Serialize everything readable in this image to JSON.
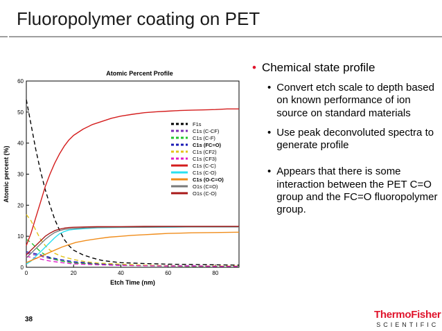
{
  "slide": {
    "title": "Fluoropolymer coating on PET",
    "page_number": "38"
  },
  "logo": {
    "line1": "ThermoFisher",
    "line2": "SCIENTIFIC"
  },
  "bullets": {
    "main": "Chemical state profile",
    "sub1": "Convert etch scale to depth based on known performance of ion source on standard materials",
    "sub2": "Use peak deconvoluted spectra to generate profile",
    "sub3": "Appears that there is some interaction between the PET C=O group and the FC=O fluoropolymer group."
  },
  "chart_data": {
    "type": "line",
    "title": "Atomic Percent Profile",
    "xlabel": "Etch Time (nm)",
    "ylabel": "Atomic percent (%)",
    "xlim": [
      0,
      90
    ],
    "ylim": [
      0,
      60
    ],
    "xticks": [
      0,
      20,
      40,
      60,
      80
    ],
    "yticks": [
      0,
      10,
      20,
      30,
      40,
      50,
      60
    ],
    "legend_position": "center-right",
    "series": [
      {
        "name": "F1s",
        "color": "#000000",
        "style": "dashed",
        "bold": false,
        "x": [
          0,
          2,
          4,
          6,
          8,
          10,
          12,
          14,
          16,
          18,
          20,
          24,
          28,
          32,
          36,
          40,
          50,
          60,
          70,
          80,
          90
        ],
        "y": [
          54,
          46,
          38,
          31,
          25,
          20,
          15.5,
          12,
          9,
          7,
          5.5,
          4,
          3,
          2.2,
          1.8,
          1.5,
          1.2,
          1,
          0.9,
          0.8,
          0.7
        ]
      },
      {
        "name": "C1s (C-CF)",
        "color": "#7b2fb5",
        "style": "dashed",
        "bold": false,
        "x": [
          0,
          5,
          10,
          15,
          20,
          30,
          40,
          50,
          60,
          70,
          80,
          90
        ],
        "y": [
          4.5,
          3.8,
          2.8,
          2,
          1.5,
          1,
          0.8,
          0.6,
          0.5,
          0.5,
          0.4,
          0.4
        ]
      },
      {
        "name": "C1s (C-F)",
        "color": "#22c22e",
        "style": "dashed",
        "bold": false,
        "x": [
          0,
          2,
          4,
          6,
          8,
          10,
          15,
          20,
          30,
          40,
          50,
          60,
          70,
          80,
          90
        ],
        "y": [
          9,
          8,
          6.5,
          5,
          4,
          3,
          2,
          1.4,
          1,
          0.7,
          0.5,
          0.4,
          0.3,
          0.3,
          0.3
        ]
      },
      {
        "name": "C1s (FC=O)",
        "color": "#1a1ab5",
        "style": "dashed",
        "bold": true,
        "x": [
          0,
          5,
          10,
          15,
          20,
          30,
          40,
          50,
          60,
          70,
          80,
          90
        ],
        "y": [
          5,
          4.2,
          3.2,
          2.4,
          1.8,
          1.2,
          0.8,
          0.6,
          0.5,
          0.4,
          0.4,
          0.4
        ]
      },
      {
        "name": "C1s (CF2)",
        "color": "#e3c21a",
        "style": "dashed",
        "bold": false,
        "x": [
          0,
          2,
          4,
          6,
          8,
          10,
          12,
          15,
          20,
          25,
          30,
          40,
          50,
          60,
          70,
          80,
          90
        ],
        "y": [
          17,
          15,
          12,
          9,
          7,
          5.5,
          4.5,
          3.5,
          2.5,
          1.8,
          1.4,
          1,
          0.7,
          0.5,
          0.4,
          0.4,
          0.4
        ]
      },
      {
        "name": "C1s (CF3)",
        "color": "#e01fc8",
        "style": "dashed",
        "bold": false,
        "x": [
          0,
          5,
          10,
          15,
          20,
          30,
          40,
          50,
          60,
          70,
          80,
          90
        ],
        "y": [
          3.5,
          2.8,
          2,
          1.5,
          1.1,
          0.8,
          0.6,
          0.5,
          0.4,
          0.4,
          0.3,
          0.3
        ]
      },
      {
        "name": "C1s (C-C)",
        "color": "#d41c1c",
        "style": "solid",
        "bold": false,
        "x": [
          0,
          2,
          4,
          6,
          8,
          10,
          12,
          14,
          16,
          18,
          20,
          24,
          28,
          32,
          36,
          40,
          45,
          50,
          55,
          60,
          65,
          70,
          75,
          80,
          85,
          90
        ],
        "y": [
          7,
          11,
          16,
          21,
          26,
          30,
          33.5,
          36.5,
          39,
          41,
          42.5,
          44.5,
          46,
          47,
          48,
          48.7,
          49.3,
          49.8,
          50.1,
          50.3,
          50.5,
          50.6,
          50.7,
          50.8,
          51,
          51
        ]
      },
      {
        "name": "C1s (C-O)",
        "color": "#29e0f0",
        "style": "solid",
        "bold": false,
        "x": [
          0,
          2,
          4,
          6,
          8,
          10,
          12,
          14,
          16,
          18,
          20,
          25,
          30,
          40,
          50,
          60,
          70,
          80,
          90
        ],
        "y": [
          1,
          2,
          3.5,
          5,
          6.5,
          8,
          9.5,
          10.8,
          11.5,
          12,
          12.2,
          12.5,
          12.7,
          12.8,
          12.9,
          12.9,
          13,
          13,
          13
        ]
      },
      {
        "name": "C1s (O-C=O)",
        "color": "#f08c1a",
        "style": "solid",
        "bold": true,
        "x": [
          0,
          3,
          6,
          9,
          12,
          15,
          18,
          21,
          25,
          30,
          35,
          40,
          45,
          50,
          55,
          60,
          65,
          70,
          80,
          90
        ],
        "y": [
          1.5,
          2.5,
          3.5,
          4.5,
          5.5,
          6.5,
          7.3,
          8,
          8.6,
          9.2,
          9.7,
          10,
          10.3,
          10.5,
          10.7,
          10.9,
          11,
          11.1,
          11.2,
          11.3
        ]
      },
      {
        "name": "O1s (C=O)",
        "color": "#7a7a7a",
        "style": "solid",
        "bold": false,
        "x": [
          0,
          2,
          4,
          6,
          8,
          10,
          12,
          14,
          16,
          18,
          20,
          25,
          30,
          40,
          50,
          60,
          70,
          80,
          90
        ],
        "y": [
          3,
          4.5,
          6,
          7.5,
          9,
          10.2,
          11.2,
          11.8,
          12.2,
          12.4,
          12.5,
          12.7,
          12.8,
          12.9,
          12.9,
          13,
          13,
          13,
          13
        ]
      },
      {
        "name": "O1s (C-O)",
        "color": "#a81818",
        "style": "solid",
        "bold": false,
        "x": [
          0,
          2,
          4,
          6,
          8,
          10,
          12,
          14,
          16,
          18,
          20,
          25,
          30,
          40,
          50,
          60,
          70,
          80,
          90
        ],
        "y": [
          4,
          5.5,
          7,
          8.5,
          10,
          11,
          11.8,
          12.3,
          12.6,
          12.8,
          12.9,
          13,
          13.1,
          13.1,
          13.2,
          13.2,
          13.2,
          13.2,
          13.2
        ]
      }
    ]
  }
}
